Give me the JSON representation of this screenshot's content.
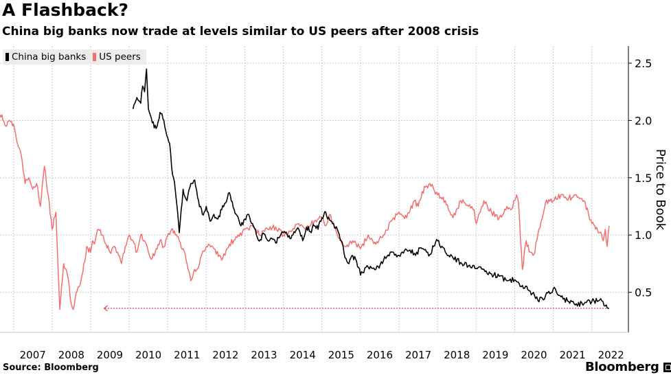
{
  "header": {
    "title": "A Flashback?",
    "subtitle": "China big banks now trade at levels similar to US peers after 2008 crisis"
  },
  "footer": {
    "source": "Source: Bloomberg",
    "brand": "Bloomberg"
  },
  "colors": {
    "china": "#000000",
    "us": "#f26d6d",
    "reference": "#e8424a",
    "grid": "#c9c9c9"
  },
  "chart_data": {
    "type": "line",
    "title": "A Flashback?",
    "subtitle": "China big banks now trade at levels similar to US peers after 2008 crisis",
    "xlabel": "",
    "ylabel": "Price to Book",
    "xlim": [
      2006.65,
      2022.95
    ],
    "ylim": [
      0.15,
      2.65
    ],
    "x_ticks": [
      2007,
      2008,
      2009,
      2010,
      2011,
      2012,
      2013,
      2014,
      2015,
      2016,
      2017,
      2018,
      2019,
      2020,
      2021,
      2022
    ],
    "y_ticks": [
      0.5,
      1.0,
      1.5,
      2.0,
      2.5
    ],
    "y_tick_labels": [
      "0.5",
      "1.0",
      "1.5",
      "2.0",
      "2.5"
    ],
    "grid": true,
    "legend_position": "top-left",
    "series": [
      {
        "name": "China big banks",
        "color": "#000000",
        "x": [
          2010.1,
          2010.2,
          2010.3,
          2010.35,
          2010.4,
          2010.45,
          2010.5,
          2010.6,
          2010.7,
          2010.8,
          2010.9,
          2011.0,
          2011.05,
          2011.1,
          2011.15,
          2011.2,
          2011.3,
          2011.4,
          2011.5,
          2011.6,
          2011.7,
          2011.8,
          2011.9,
          2012.0,
          2012.1,
          2012.2,
          2012.3,
          2012.4,
          2012.5,
          2012.6,
          2012.7,
          2012.8,
          2012.9,
          2013.0,
          2013.1,
          2013.2,
          2013.3,
          2013.4,
          2013.5,
          2013.6,
          2013.7,
          2013.8,
          2013.9,
          2014.0,
          2014.1,
          2014.2,
          2014.3,
          2014.4,
          2014.5,
          2014.6,
          2014.7,
          2014.8,
          2014.9,
          2015.0,
          2015.1,
          2015.2,
          2015.3,
          2015.4,
          2015.5,
          2015.6,
          2015.7,
          2015.8,
          2015.9,
          2016.0,
          2016.2,
          2016.4,
          2016.6,
          2016.8,
          2017.0,
          2017.2,
          2017.4,
          2017.6,
          2017.8,
          2017.9,
          2018.0,
          2018.2,
          2018.4,
          2018.6,
          2018.8,
          2019.0,
          2019.2,
          2019.4,
          2019.6,
          2019.8,
          2020.0,
          2020.2,
          2020.4,
          2020.6,
          2020.8,
          2021.0,
          2021.2,
          2021.4,
          2021.6,
          2021.8,
          2022.0,
          2022.2,
          2022.35,
          2022.45
        ],
        "values": [
          2.1,
          2.2,
          2.15,
          2.3,
          2.25,
          2.45,
          2.1,
          1.98,
          1.93,
          2.07,
          2.0,
          1.85,
          1.8,
          1.6,
          1.5,
          1.38,
          1.02,
          1.4,
          1.3,
          1.45,
          1.48,
          1.3,
          1.18,
          1.25,
          1.12,
          1.18,
          1.14,
          1.22,
          1.28,
          1.37,
          1.24,
          1.17,
          1.08,
          1.14,
          1.18,
          1.1,
          1.0,
          0.96,
          1.01,
          0.95,
          0.97,
          0.93,
          0.98,
          1.02,
          1.0,
          0.97,
          1.02,
          1.05,
          0.95,
          1.07,
          1.03,
          1.08,
          1.05,
          1.15,
          1.2,
          1.13,
          1.1,
          1.05,
          0.95,
          0.8,
          0.75,
          0.82,
          0.77,
          0.65,
          0.72,
          0.7,
          0.78,
          0.85,
          0.82,
          0.87,
          0.84,
          0.88,
          0.83,
          0.9,
          0.95,
          0.85,
          0.8,
          0.76,
          0.73,
          0.71,
          0.7,
          0.66,
          0.64,
          0.6,
          0.61,
          0.56,
          0.51,
          0.43,
          0.47,
          0.53,
          0.46,
          0.42,
          0.4,
          0.4,
          0.42,
          0.43,
          0.38,
          0.36
        ]
      },
      {
        "name": "US peers",
        "color": "#f26d6d",
        "x": [
          2006.65,
          2006.7,
          2006.8,
          2006.9,
          2007.0,
          2007.1,
          2007.2,
          2007.3,
          2007.4,
          2007.5,
          2007.6,
          2007.7,
          2007.8,
          2007.9,
          2008.0,
          2008.1,
          2008.2,
          2008.3,
          2008.4,
          2008.5,
          2008.55,
          2008.6,
          2008.7,
          2008.75,
          2008.8,
          2008.9,
          2009.0,
          2009.05,
          2009.1,
          2009.15,
          2009.2,
          2009.3,
          2009.4,
          2009.5,
          2009.6,
          2009.7,
          2009.8,
          2009.9,
          2010.0,
          2010.1,
          2010.2,
          2010.3,
          2010.4,
          2010.5,
          2010.6,
          2010.7,
          2010.8,
          2010.9,
          2011.0,
          2011.1,
          2011.2,
          2011.3,
          2011.4,
          2011.5,
          2011.6,
          2011.7,
          2011.8,
          2011.9,
          2012.0,
          2012.2,
          2012.4,
          2012.6,
          2012.8,
          2013.0,
          2013.2,
          2013.4,
          2013.6,
          2013.8,
          2014.0,
          2014.2,
          2014.4,
          2014.6,
          2014.8,
          2015.0,
          2015.1,
          2015.2,
          2015.4,
          2015.6,
          2015.8,
          2016.0,
          2016.2,
          2016.4,
          2016.6,
          2016.8,
          2017.0,
          2017.2,
          2017.4,
          2017.5,
          2017.6,
          2017.8,
          2018.0,
          2018.2,
          2018.4,
          2018.6,
          2018.8,
          2018.95,
          2019.0,
          2019.2,
          2019.4,
          2019.6,
          2019.8,
          2019.9,
          2020.0,
          2020.05,
          2020.1,
          2020.2,
          2020.3,
          2020.4,
          2020.5,
          2020.6,
          2020.8,
          2021.0,
          2021.2,
          2021.4,
          2021.6,
          2021.8,
          2022.0,
          2022.1,
          2022.2,
          2022.3,
          2022.35,
          2022.4,
          2022.45
        ],
        "values": [
          2.05,
          2.05,
          1.95,
          2.0,
          1.97,
          1.8,
          1.7,
          1.45,
          1.5,
          1.4,
          1.45,
          1.25,
          1.6,
          1.35,
          1.05,
          1.2,
          0.35,
          0.75,
          0.65,
          0.4,
          0.35,
          0.45,
          0.55,
          0.6,
          0.68,
          0.9,
          0.85,
          0.95,
          0.92,
          1.0,
          1.05,
          1.0,
          0.92,
          0.85,
          0.9,
          0.85,
          0.75,
          0.9,
          1.0,
          0.95,
          0.85,
          1.0,
          0.95,
          0.85,
          0.8,
          0.88,
          0.95,
          0.9,
          1.0,
          1.05,
          1.0,
          0.95,
          0.88,
          0.75,
          0.6,
          0.7,
          0.72,
          0.85,
          0.9,
          0.88,
          0.78,
          0.92,
          0.98,
          1.05,
          1.08,
          1.0,
          1.05,
          1.07,
          1.0,
          1.03,
          1.1,
          1.05,
          1.12,
          1.15,
          1.08,
          1.18,
          1.0,
          0.9,
          0.95,
          0.88,
          1.0,
          0.92,
          1.0,
          1.12,
          1.2,
          1.15,
          1.3,
          1.25,
          1.38,
          1.45,
          1.35,
          1.3,
          1.15,
          1.3,
          1.25,
          1.22,
          1.1,
          1.3,
          1.2,
          1.15,
          1.25,
          1.22,
          1.3,
          1.35,
          1.28,
          0.7,
          0.95,
          0.85,
          0.83,
          1.0,
          1.28,
          1.3,
          1.35,
          1.32,
          1.35,
          1.3,
          1.1,
          1.05,
          1.02,
          0.95,
          1.05,
          0.9,
          1.08
        ]
      }
    ],
    "annotations": [
      {
        "type": "reference-arrow",
        "value": 0.36,
        "from_x": 2022.45,
        "to_x": 2009.35,
        "label": ""
      }
    ]
  }
}
